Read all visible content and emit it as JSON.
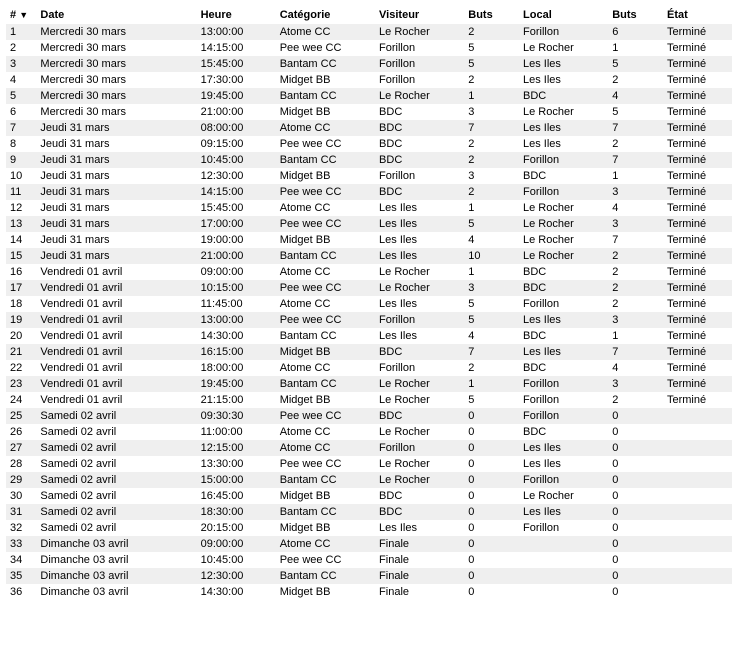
{
  "columns": [
    "#",
    "Date",
    "Heure",
    "Catégorie",
    "Visiteur",
    "Buts",
    "Local",
    "Buts",
    "État"
  ],
  "sort_indicator": "▼",
  "rows": [
    {
      "n": 1,
      "date": "Mercredi 30 mars",
      "time": "13:00:00",
      "cat": "Atome CC",
      "vis": "Le Rocher",
      "b1": "2",
      "loc": "Forillon",
      "b2": "6",
      "etat": "Terminé"
    },
    {
      "n": 2,
      "date": "Mercredi 30 mars",
      "time": "14:15:00",
      "cat": "Pee wee CC",
      "vis": "Forillon",
      "b1": "5",
      "loc": "Le Rocher",
      "b2": "1",
      "etat": "Terminé"
    },
    {
      "n": 3,
      "date": "Mercredi 30 mars",
      "time": "15:45:00",
      "cat": "Bantam CC",
      "vis": "Forillon",
      "b1": "5",
      "loc": "Les Iles",
      "b2": "5",
      "etat": "Terminé"
    },
    {
      "n": 4,
      "date": "Mercredi 30 mars",
      "time": "17:30:00",
      "cat": "Midget BB",
      "vis": "Forillon",
      "b1": "2",
      "loc": "Les Iles",
      "b2": "2",
      "etat": "Terminé"
    },
    {
      "n": 5,
      "date": "Mercredi 30 mars",
      "time": "19:45:00",
      "cat": "Bantam CC",
      "vis": "Le Rocher",
      "b1": "1",
      "loc": "BDC",
      "b2": "4",
      "etat": "Terminé"
    },
    {
      "n": 6,
      "date": "Mercredi 30 mars",
      "time": "21:00:00",
      "cat": "Midget BB",
      "vis": "BDC",
      "b1": "3",
      "loc": "Le Rocher",
      "b2": "5",
      "etat": "Terminé"
    },
    {
      "n": 7,
      "date": "Jeudi 31 mars",
      "time": "08:00:00",
      "cat": "Atome CC",
      "vis": "BDC",
      "b1": "7",
      "loc": "Les Iles",
      "b2": "7",
      "etat": "Terminé"
    },
    {
      "n": 8,
      "date": "Jeudi 31 mars",
      "time": "09:15:00",
      "cat": "Pee wee CC",
      "vis": "BDC",
      "b1": "2",
      "loc": "Les Iles",
      "b2": "2",
      "etat": "Terminé"
    },
    {
      "n": 9,
      "date": "Jeudi 31 mars",
      "time": "10:45:00",
      "cat": "Bantam CC",
      "vis": "BDC",
      "b1": "2",
      "loc": "Forillon",
      "b2": "7",
      "etat": "Terminé"
    },
    {
      "n": 10,
      "date": "Jeudi 31 mars",
      "time": "12:30:00",
      "cat": "Midget BB",
      "vis": "Forillon",
      "b1": "3",
      "loc": "BDC",
      "b2": "1",
      "etat": "Terminé"
    },
    {
      "n": 11,
      "date": "Jeudi 31 mars",
      "time": "14:15:00",
      "cat": "Pee wee CC",
      "vis": "BDC",
      "b1": "2",
      "loc": "Forillon",
      "b2": "3",
      "etat": "Terminé"
    },
    {
      "n": 12,
      "date": "Jeudi 31 mars",
      "time": "15:45:00",
      "cat": "Atome CC",
      "vis": "Les Iles",
      "b1": "1",
      "loc": "Le Rocher",
      "b2": "4",
      "etat": "Terminé"
    },
    {
      "n": 13,
      "date": "Jeudi 31 mars",
      "time": "17:00:00",
      "cat": "Pee wee CC",
      "vis": "Les Iles",
      "b1": "5",
      "loc": "Le Rocher",
      "b2": "3",
      "etat": "Terminé"
    },
    {
      "n": 14,
      "date": "Jeudi 31 mars",
      "time": "19:00:00",
      "cat": "Midget BB",
      "vis": "Les Iles",
      "b1": "4",
      "loc": "Le Rocher",
      "b2": "7",
      "etat": "Terminé"
    },
    {
      "n": 15,
      "date": "Jeudi 31 mars",
      "time": "21:00:00",
      "cat": "Bantam CC",
      "vis": "Les Iles",
      "b1": "10",
      "loc": "Le Rocher",
      "b2": "2",
      "etat": "Terminé"
    },
    {
      "n": 16,
      "date": "Vendredi 01 avril",
      "time": "09:00:00",
      "cat": "Atome CC",
      "vis": "Le Rocher",
      "b1": "1",
      "loc": "BDC",
      "b2": "2",
      "etat": "Terminé"
    },
    {
      "n": 17,
      "date": "Vendredi 01 avril",
      "time": "10:15:00",
      "cat": "Pee wee CC",
      "vis": "Le Rocher",
      "b1": "3",
      "loc": "BDC",
      "b2": "2",
      "etat": "Terminé"
    },
    {
      "n": 18,
      "date": "Vendredi 01 avril",
      "time": "11:45:00",
      "cat": "Atome CC",
      "vis": "Les Iles",
      "b1": "5",
      "loc": "Forillon",
      "b2": "2",
      "etat": "Terminé"
    },
    {
      "n": 19,
      "date": "Vendredi 01 avril",
      "time": "13:00:00",
      "cat": "Pee wee CC",
      "vis": "Forillon",
      "b1": "5",
      "loc": "Les Iles",
      "b2": "3",
      "etat": "Terminé"
    },
    {
      "n": 20,
      "date": "Vendredi 01 avril",
      "time": "14:30:00",
      "cat": "Bantam CC",
      "vis": "Les Iles",
      "b1": "4",
      "loc": "BDC",
      "b2": "1",
      "etat": "Terminé"
    },
    {
      "n": 21,
      "date": "Vendredi 01 avril",
      "time": "16:15:00",
      "cat": "Midget BB",
      "vis": "BDC",
      "b1": "7",
      "loc": "Les Iles",
      "b2": "7",
      "etat": "Terminé"
    },
    {
      "n": 22,
      "date": "Vendredi 01 avril",
      "time": "18:00:00",
      "cat": "Atome CC",
      "vis": "Forillon",
      "b1": "2",
      "loc": "BDC",
      "b2": "4",
      "etat": "Terminé"
    },
    {
      "n": 23,
      "date": "Vendredi 01 avril",
      "time": "19:45:00",
      "cat": "Bantam CC",
      "vis": "Le Rocher",
      "b1": "1",
      "loc": "Forillon",
      "b2": "3",
      "etat": "Terminé"
    },
    {
      "n": 24,
      "date": "Vendredi 01 avril",
      "time": "21:15:00",
      "cat": "Midget BB",
      "vis": "Le Rocher",
      "b1": "5",
      "loc": "Forillon",
      "b2": "2",
      "etat": "Terminé"
    },
    {
      "n": 25,
      "date": "Samedi 02 avril",
      "time": "09:30:30",
      "cat": "Pee wee CC",
      "vis": "BDC",
      "b1": "0",
      "loc": "Forillon",
      "b2": "0",
      "etat": ""
    },
    {
      "n": 26,
      "date": "Samedi 02 avril",
      "time": "11:00:00",
      "cat": "Atome CC",
      "vis": "Le Rocher",
      "b1": "0",
      "loc": "BDC",
      "b2": "0",
      "etat": ""
    },
    {
      "n": 27,
      "date": "Samedi 02 avril",
      "time": "12:15:00",
      "cat": "Atome CC",
      "vis": "Forillon",
      "b1": "0",
      "loc": "Les Iles",
      "b2": "0",
      "etat": ""
    },
    {
      "n": 28,
      "date": "Samedi 02 avril",
      "time": "13:30:00",
      "cat": "Pee wee CC",
      "vis": "Le Rocher",
      "b1": "0",
      "loc": "Les Iles",
      "b2": "0",
      "etat": ""
    },
    {
      "n": 29,
      "date": "Samedi 02 avril",
      "time": "15:00:00",
      "cat": "Bantam CC",
      "vis": "Le Rocher",
      "b1": "0",
      "loc": "Forillon",
      "b2": "0",
      "etat": ""
    },
    {
      "n": 30,
      "date": "Samedi 02 avril",
      "time": "16:45:00",
      "cat": "Midget BB",
      "vis": "BDC",
      "b1": "0",
      "loc": "Le Rocher",
      "b2": "0",
      "etat": ""
    },
    {
      "n": 31,
      "date": "Samedi 02 avril",
      "time": "18:30:00",
      "cat": "Bantam CC",
      "vis": "BDC",
      "b1": "0",
      "loc": "Les Iles",
      "b2": "0",
      "etat": ""
    },
    {
      "n": 32,
      "date": "Samedi 02 avril",
      "time": "20:15:00",
      "cat": "Midget BB",
      "vis": "Les Iles",
      "b1": "0",
      "loc": "Forillon",
      "b2": "0",
      "etat": ""
    },
    {
      "n": 33,
      "date": "Dimanche 03 avril",
      "time": "09:00:00",
      "cat": "Atome CC",
      "vis": "Finale",
      "b1": "0",
      "loc": "",
      "b2": "0",
      "etat": ""
    },
    {
      "n": 34,
      "date": "Dimanche 03 avril",
      "time": "10:45:00",
      "cat": "Pee wee CC",
      "vis": "Finale",
      "b1": "0",
      "loc": "",
      "b2": "0",
      "etat": ""
    },
    {
      "n": 35,
      "date": "Dimanche 03 avril",
      "time": "12:30:00",
      "cat": "Bantam CC",
      "vis": "Finale",
      "b1": "0",
      "loc": "",
      "b2": "0",
      "etat": ""
    },
    {
      "n": 36,
      "date": "Dimanche 03 avril",
      "time": "14:30:00",
      "cat": "Midget BB",
      "vis": "Finale",
      "b1": "0",
      "loc": "",
      "b2": "0",
      "etat": ""
    }
  ]
}
